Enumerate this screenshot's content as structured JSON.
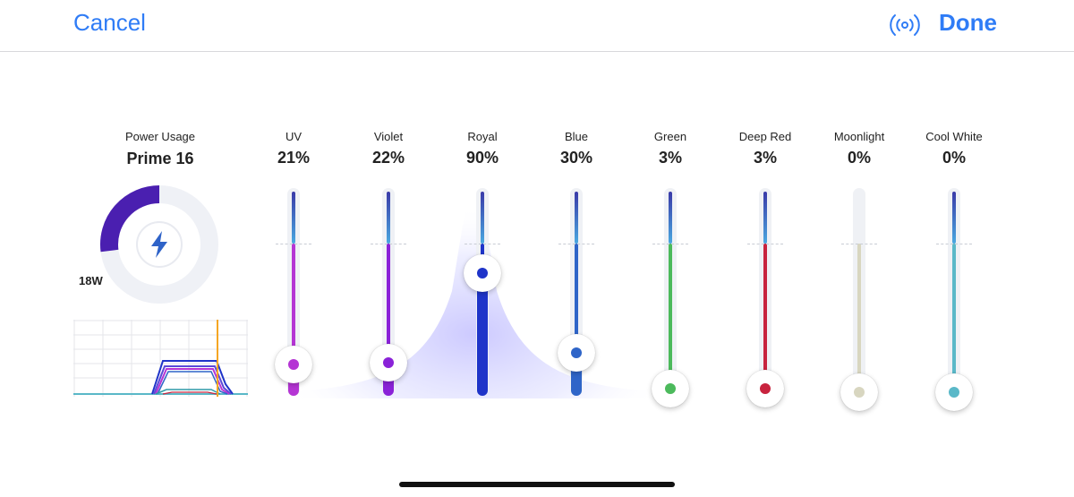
{
  "nav": {
    "cancel_label": "Cancel",
    "done_label": "Done",
    "icon": "broadcast-icon"
  },
  "power": {
    "title": "Power Usage",
    "model": "Prime 16",
    "watts_label": "18W",
    "gauge_fraction": 0.27,
    "icon": "lightning-bolt-icon"
  },
  "channels": [
    {
      "name": "UV",
      "value": "21%",
      "level": 0.21,
      "color": "#b535d4"
    },
    {
      "name": "Violet",
      "value": "22%",
      "level": 0.22,
      "color": "#8a22d8"
    },
    {
      "name": "Royal",
      "value": "90%",
      "level": 0.9,
      "color": "#1f34c9"
    },
    {
      "name": "Blue",
      "value": "30%",
      "level": 0.3,
      "color": "#2f65c8"
    },
    {
      "name": "Green",
      "value": "3%",
      "level": 0.03,
      "color": "#4cba5c"
    },
    {
      "name": "Deep Red",
      "value": "3%",
      "level": 0.03,
      "color": "#c8233e"
    },
    {
      "name": "Moonlight",
      "value": "0%",
      "level": 0.0,
      "color": "#d8d6c0"
    },
    {
      "name": "Cool White",
      "value": "0%",
      "level": 0.0,
      "color": "#5ab8c8"
    }
  ],
  "colors": {
    "accent": "#2f7cf6",
    "gauge": "#4a1fb0",
    "gauge_track": "#eff1f6",
    "schedule_marker": "#f5a623"
  }
}
